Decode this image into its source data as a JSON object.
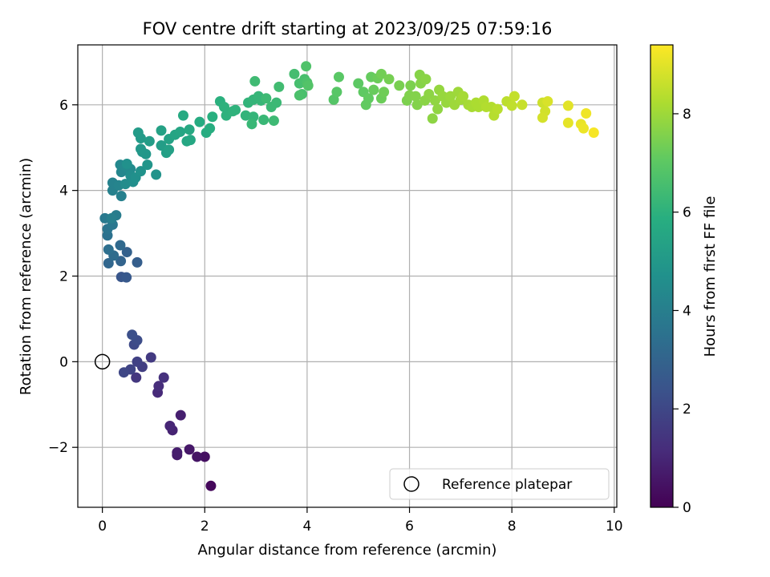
{
  "chart_data": {
    "type": "scatter",
    "title": "FOV centre drift starting at 2023/09/25 07:59:16",
    "xlabel": "Angular distance from reference (arcmin)",
    "ylabel": "Rotation from reference (arcmin)",
    "xlim": [
      -0.48,
      10.05
    ],
    "ylim": [
      -3.4,
      7.4
    ],
    "x_ticks": [
      0,
      2,
      4,
      6,
      8,
      10
    ],
    "y_ticks": [
      -2,
      0,
      2,
      4,
      6
    ],
    "x_tick_labels": [
      "0",
      "2",
      "4",
      "6",
      "8",
      "10"
    ],
    "y_tick_labels": [
      "−2",
      "0",
      "2",
      "4",
      "6"
    ],
    "grid": true,
    "legend_position": "lower-right",
    "legend_entries": [
      "Reference platepar"
    ],
    "reference_point": {
      "x": 0,
      "y": 0
    },
    "colorbar": {
      "label": "Hours from first FF file",
      "min": 0,
      "max": 9.4,
      "colormap": "viridis",
      "ticks": [
        0,
        2,
        4,
        6,
        8
      ],
      "tick_labels": [
        "0",
        "2",
        "4",
        "6",
        "8"
      ]
    },
    "points": [
      [
        2.12,
        -2.9,
        0.2
      ],
      [
        2.0,
        -2.22,
        0.4
      ],
      [
        1.85,
        -2.22,
        0.5
      ],
      [
        1.7,
        -2.05,
        0.6
      ],
      [
        1.46,
        -2.18,
        0.7
      ],
      [
        1.46,
        -2.12,
        0.75
      ],
      [
        1.53,
        -1.25,
        0.8
      ],
      [
        1.37,
        -1.6,
        0.9
      ],
      [
        1.32,
        -1.5,
        1.0
      ],
      [
        1.08,
        -0.72,
        1.1
      ],
      [
        1.1,
        -0.57,
        1.2
      ],
      [
        1.2,
        -0.37,
        1.3
      ],
      [
        0.66,
        -0.37,
        1.5
      ],
      [
        0.95,
        0.1,
        1.6
      ],
      [
        0.78,
        -0.12,
        1.7
      ],
      [
        0.68,
        0.0,
        1.8
      ],
      [
        0.55,
        -0.18,
        1.9
      ],
      [
        0.42,
        -0.25,
        2.0
      ],
      [
        0.62,
        0.4,
        2.1
      ],
      [
        0.68,
        0.5,
        2.2
      ],
      [
        0.58,
        0.63,
        2.3
      ],
      [
        0.37,
        1.98,
        2.5
      ],
      [
        0.47,
        1.97,
        2.6
      ],
      [
        0.68,
        2.32,
        2.8
      ],
      [
        0.48,
        2.56,
        2.9
      ],
      [
        0.36,
        2.35,
        3.0
      ],
      [
        0.12,
        2.3,
        3.1
      ],
      [
        0.35,
        2.72,
        3.2
      ],
      [
        0.22,
        2.48,
        3.3
      ],
      [
        0.12,
        2.62,
        3.4
      ],
      [
        0.1,
        2.95,
        3.5
      ],
      [
        0.1,
        3.1,
        3.6
      ],
      [
        0.2,
        3.2,
        3.7
      ],
      [
        0.05,
        3.35,
        3.8
      ],
      [
        0.27,
        3.42,
        3.9
      ],
      [
        0.18,
        3.35,
        4.0
      ],
      [
        0.37,
        3.87,
        4.05
      ],
      [
        0.2,
        4.0,
        4.1
      ],
      [
        0.2,
        4.18,
        4.15
      ],
      [
        0.32,
        4.12,
        4.2
      ],
      [
        0.37,
        4.43,
        4.3
      ],
      [
        0.35,
        4.6,
        4.35
      ],
      [
        0.45,
        4.55,
        4.4
      ],
      [
        0.55,
        4.5,
        4.45
      ],
      [
        0.45,
        4.15,
        4.5
      ],
      [
        0.55,
        4.35,
        4.55
      ],
      [
        0.6,
        4.2,
        4.6
      ],
      [
        0.65,
        4.3,
        4.65
      ],
      [
        0.48,
        4.62,
        4.7
      ],
      [
        0.75,
        4.45,
        4.75
      ],
      [
        1.05,
        4.37,
        4.8
      ],
      [
        0.88,
        4.6,
        4.85
      ],
      [
        0.78,
        4.9,
        4.9
      ],
      [
        0.85,
        4.85,
        4.95
      ],
      [
        0.75,
        4.97,
        5.0
      ],
      [
        0.75,
        5.22,
        5.05
      ],
      [
        0.7,
        5.35,
        5.1
      ],
      [
        0.92,
        5.15,
        5.15
      ],
      [
        1.15,
        5.05,
        5.2
      ],
      [
        1.25,
        4.88,
        5.25
      ],
      [
        1.3,
        4.95,
        5.3
      ],
      [
        1.15,
        5.4,
        5.35
      ],
      [
        1.3,
        5.2,
        5.4
      ],
      [
        1.42,
        5.3,
        5.45
      ],
      [
        1.52,
        5.37,
        5.5
      ],
      [
        1.65,
        5.15,
        5.55
      ],
      [
        1.72,
        5.18,
        5.6
      ],
      [
        1.7,
        5.42,
        5.65
      ],
      [
        1.58,
        5.75,
        5.7
      ],
      [
        1.9,
        5.6,
        5.75
      ],
      [
        2.03,
        5.35,
        5.8
      ],
      [
        2.1,
        5.45,
        5.85
      ],
      [
        2.15,
        5.72,
        5.9
      ],
      [
        2.3,
        6.08,
        5.95
      ],
      [
        2.38,
        5.95,
        6.0
      ],
      [
        2.42,
        5.75,
        6.0
      ],
      [
        2.55,
        5.85,
        6.05
      ],
      [
        2.6,
        5.88,
        6.05
      ],
      [
        2.8,
        5.75,
        6.1
      ],
      [
        2.85,
        6.05,
        6.1
      ],
      [
        2.95,
        5.72,
        6.15
      ],
      [
        2.95,
        6.12,
        6.15
      ],
      [
        3.05,
        6.2,
        6.2
      ],
      [
        3.1,
        6.1,
        6.2
      ],
      [
        2.92,
        5.55,
        6.25
      ],
      [
        3.15,
        5.65,
        6.25
      ],
      [
        3.3,
        5.95,
        6.3
      ],
      [
        3.4,
        6.05,
        6.3
      ],
      [
        3.35,
        5.63,
        6.35
      ],
      [
        3.2,
        6.15,
        6.35
      ],
      [
        2.98,
        6.55,
        6.4
      ],
      [
        3.45,
        6.42,
        6.45
      ],
      [
        3.75,
        6.72,
        6.5
      ],
      [
        3.85,
        6.5,
        6.55
      ],
      [
        3.95,
        6.6,
        6.6
      ],
      [
        3.9,
        6.25,
        6.6
      ],
      [
        3.85,
        6.22,
        6.65
      ],
      [
        4.0,
        6.52,
        6.7
      ],
      [
        3.98,
        6.9,
        6.75
      ],
      [
        4.02,
        6.45,
        6.8
      ],
      [
        4.52,
        6.12,
        6.85
      ],
      [
        4.58,
        6.3,
        6.9
      ],
      [
        4.62,
        6.65,
        6.95
      ],
      [
        5.0,
        6.5,
        7.0
      ],
      [
        5.1,
        6.3,
        7.05
      ],
      [
        5.15,
        6.0,
        7.1
      ],
      [
        5.2,
        6.15,
        7.1
      ],
      [
        5.25,
        6.65,
        7.15
      ],
      [
        5.3,
        6.35,
        7.2
      ],
      [
        5.38,
        6.62,
        7.25
      ],
      [
        5.45,
        6.15,
        7.25
      ],
      [
        5.5,
        6.3,
        7.3
      ],
      [
        5.45,
        6.72,
        7.35
      ],
      [
        5.6,
        6.6,
        7.4
      ],
      [
        5.8,
        6.45,
        7.45
      ],
      [
        5.95,
        6.1,
        7.5
      ],
      [
        6.02,
        6.45,
        7.5
      ],
      [
        6.0,
        6.22,
        7.55
      ],
      [
        6.12,
        6.2,
        7.6
      ],
      [
        6.15,
        6.0,
        7.6
      ],
      [
        6.2,
        6.7,
        7.65
      ],
      [
        6.22,
        6.5,
        7.65
      ],
      [
        6.3,
        6.1,
        7.7
      ],
      [
        6.32,
        6.6,
        7.7
      ],
      [
        6.38,
        6.25,
        7.75
      ],
      [
        6.45,
        5.68,
        7.75
      ],
      [
        6.5,
        6.1,
        7.8
      ],
      [
        6.55,
        5.9,
        7.8
      ],
      [
        6.58,
        6.35,
        7.85
      ],
      [
        6.65,
        6.2,
        7.9
      ],
      [
        6.72,
        6.05,
        7.9
      ],
      [
        6.8,
        6.2,
        7.95
      ],
      [
        6.88,
        6.0,
        8.0
      ],
      [
        6.95,
        6.3,
        8.0
      ],
      [
        7.0,
        6.12,
        8.05
      ],
      [
        7.05,
        6.2,
        8.1
      ],
      [
        7.15,
        6.0,
        8.1
      ],
      [
        7.22,
        5.95,
        8.15
      ],
      [
        7.3,
        6.05,
        8.2
      ],
      [
        7.35,
        5.95,
        8.2
      ],
      [
        7.45,
        6.1,
        8.25
      ],
      [
        7.5,
        5.95,
        8.3
      ],
      [
        7.6,
        5.95,
        8.3
      ],
      [
        7.65,
        5.75,
        8.35
      ],
      [
        7.72,
        5.9,
        8.4
      ],
      [
        7.9,
        6.08,
        8.45
      ],
      [
        8.0,
        5.98,
        8.5
      ],
      [
        8.05,
        6.2,
        8.55
      ],
      [
        8.2,
        6.0,
        8.6
      ],
      [
        8.6,
        6.05,
        8.7
      ],
      [
        8.65,
        5.85,
        8.75
      ],
      [
        8.6,
        5.7,
        8.8
      ],
      [
        8.7,
        6.08,
        8.85
      ],
      [
        9.1,
        5.98,
        9.0
      ],
      [
        9.1,
        5.58,
        9.05
      ],
      [
        9.35,
        5.55,
        9.1
      ],
      [
        9.4,
        5.45,
        9.15
      ],
      [
        9.45,
        5.8,
        9.2
      ],
      [
        9.6,
        5.35,
        9.3
      ]
    ]
  }
}
